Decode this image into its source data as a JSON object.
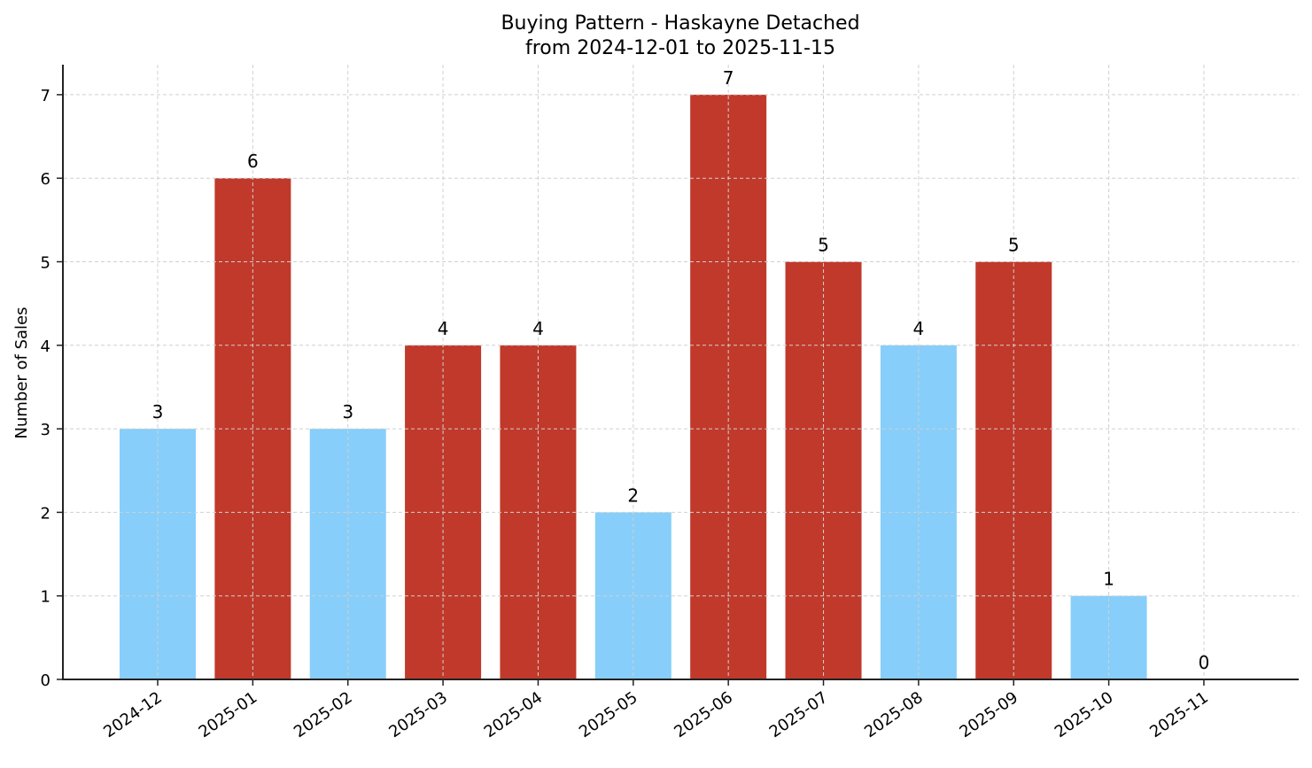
{
  "chart_data": {
    "type": "bar",
    "title": "Buying Pattern - Haskayne Detached",
    "subtitle": "from 2024-12-01 to 2025-11-15",
    "xlabel": "",
    "ylabel": "Number of Sales",
    "categories": [
      "2024-12",
      "2025-01",
      "2025-02",
      "2025-03",
      "2025-04",
      "2025-05",
      "2025-06",
      "2025-07",
      "2025-08",
      "2025-09",
      "2025-10",
      "2025-11"
    ],
    "values": [
      3,
      6,
      3,
      4,
      4,
      2,
      7,
      5,
      4,
      5,
      1,
      0
    ],
    "bar_colors": [
      "#87CEFA",
      "#C0392B",
      "#87CEFA",
      "#C0392B",
      "#C0392B",
      "#87CEFA",
      "#C0392B",
      "#C0392B",
      "#87CEFA",
      "#C0392B",
      "#87CEFA",
      "#87CEFA"
    ],
    "data_labels": [
      "3",
      "6",
      "3",
      "4",
      "4",
      "2",
      "7",
      "5",
      "4",
      "5",
      "1",
      "0"
    ],
    "yticks": [
      0,
      1,
      2,
      3,
      4,
      5,
      6,
      7
    ],
    "ylim": [
      0,
      7.35
    ],
    "grid": true,
    "legend": null,
    "colors": {
      "high": "#C0392B",
      "low": "#87CEFA",
      "axis": "#222222",
      "grid": "#cccccc"
    }
  }
}
